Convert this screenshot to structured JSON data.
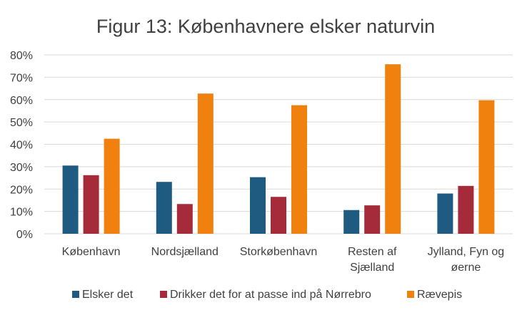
{
  "chart_data": {
    "type": "bar",
    "title": "Figur 13: Københavnere elsker naturvin",
    "categories": [
      [
        "København"
      ],
      [
        "Nordsjælland"
      ],
      [
        "Storkøbenhavn"
      ],
      [
        "Resten af",
        "Sjælland"
      ],
      [
        "Jylland, Fyn og",
        "øerne"
      ]
    ],
    "y_ticks": [
      "0%",
      "10%",
      "20%",
      "30%",
      "40%",
      "50%",
      "60%",
      "70%",
      "80%"
    ],
    "ylim": [
      0,
      80
    ],
    "grid": true,
    "legend_position": "bottom",
    "series": [
      {
        "name": "Elsker det",
        "color": "#1f5a80",
        "values": [
          30.5,
          23.2,
          25.3,
          10.6,
          18.0
        ]
      },
      {
        "name": "Drikker det for at passe ind på Nørrebro",
        "color": "#a52a3a",
        "values": [
          26.2,
          13.3,
          16.5,
          12.7,
          21.4
        ]
      },
      {
        "name": "Rævepis",
        "color": "#f0810f",
        "values": [
          42.5,
          62.7,
          57.5,
          75.8,
          59.7
        ]
      }
    ]
  }
}
